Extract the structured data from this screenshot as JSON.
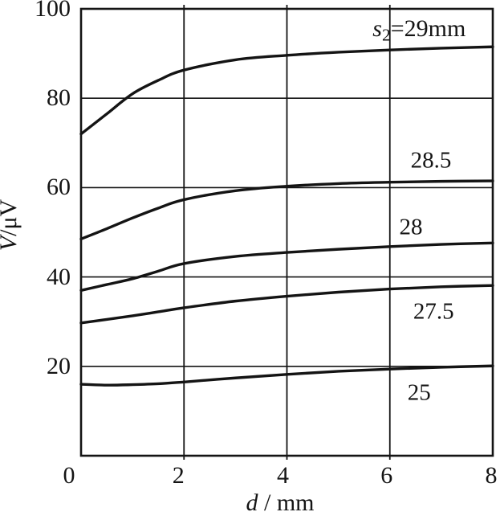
{
  "page": {
    "background": "#ffffff",
    "ink": "#141414"
  },
  "chart_data": {
    "type": "line",
    "title": "",
    "xlabel": "d / mm",
    "ylabel": "V/μV",
    "grid": true,
    "legend_position": "inline-annotations",
    "x_axis": {
      "min": 0,
      "max": 8,
      "ticks": [
        0,
        2,
        4,
        6,
        8
      ]
    },
    "y_axis": {
      "min": 0,
      "max": 100,
      "ticks": [
        20,
        40,
        60,
        80,
        100
      ]
    },
    "x": [
      0,
      0.5,
      1,
      1.5,
      2,
      3,
      4,
      5,
      6,
      7,
      8
    ],
    "series": [
      {
        "name": "s2 = 29 mm",
        "annotation": {
          "pre_italic": "s",
          "sub": "2",
          "text": "=29mm"
        },
        "values": [
          72,
          76.5,
          81,
          84,
          86.3,
          88.6,
          89.6,
          90.3,
          90.8,
          91.2,
          91.5
        ],
        "label_pos": {
          "x": 6.57,
          "y": 95.5
        }
      },
      {
        "name": "s2 = 28.5 mm",
        "annotation": {
          "text": "28.5"
        },
        "values": [
          48.5,
          50.8,
          53.2,
          55.4,
          57.3,
          59.3,
          60.3,
          60.9,
          61.2,
          61.4,
          61.5
        ],
        "label_pos": {
          "x": 6.8,
          "y": 66
        }
      },
      {
        "name": "s2 = 28 mm",
        "annotation": {
          "text": "28"
        },
        "values": [
          37,
          38.3,
          39.6,
          41.3,
          43,
          44.6,
          45.5,
          46.2,
          46.8,
          47.3,
          47.6
        ],
        "label_pos": {
          "x": 6.41,
          "y": 51
        }
      },
      {
        "name": "s2 = 27.5 mm",
        "annotation": {
          "text": "27.5"
        },
        "values": [
          29.7,
          30.5,
          31.3,
          32.2,
          33.1,
          34.6,
          35.7,
          36.6,
          37.3,
          37.8,
          38.1
        ],
        "label_pos": {
          "x": 6.85,
          "y": 32.2
        }
      },
      {
        "name": "s2 = 25 mm",
        "annotation": {
          "text": "25"
        },
        "values": [
          16,
          15.8,
          15.9,
          16.1,
          16.5,
          17.4,
          18.2,
          18.9,
          19.4,
          19.8,
          20.1
        ],
        "label_pos": {
          "x": 6.57,
          "y": 14
        }
      }
    ]
  }
}
